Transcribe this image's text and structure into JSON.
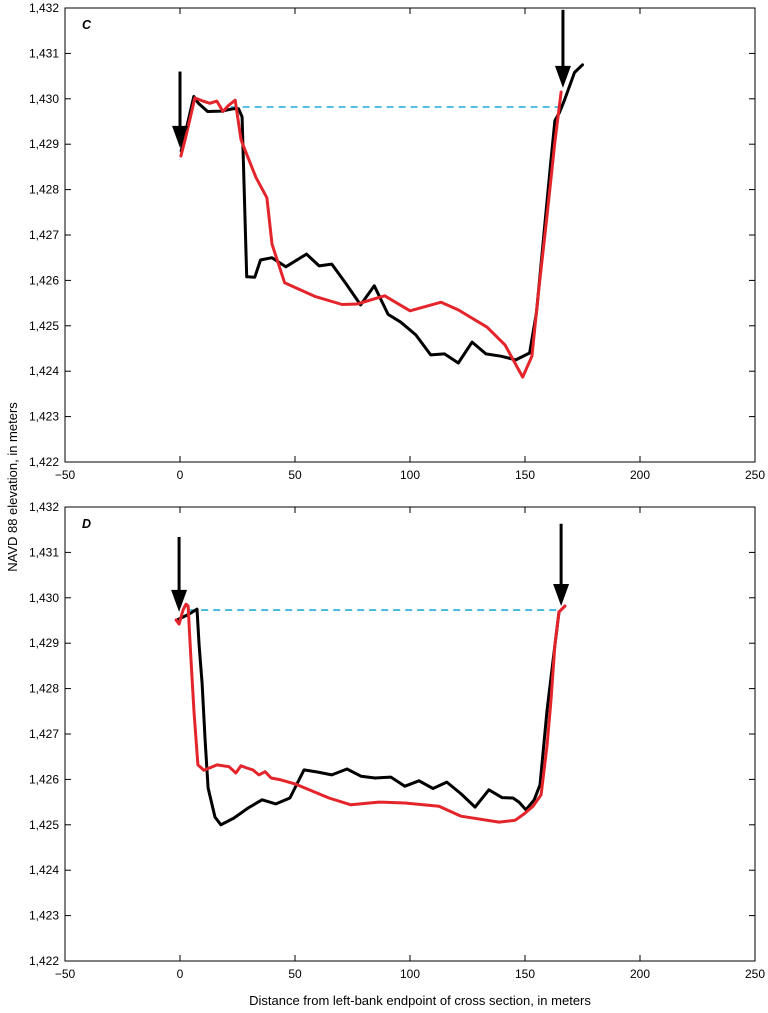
{
  "figure": {
    "ylabel": "NAVD 88 elevation, in meters",
    "xlabel": "Distance from left-bank endpoint of cross section, in meters"
  },
  "chart_data": [
    {
      "type": "line",
      "panel_label": "C",
      "xlim": [
        -50,
        250
      ],
      "ylim": [
        1422,
        1432
      ],
      "grid": false,
      "x_ticks": [
        -50,
        0,
        50,
        100,
        150,
        200,
        250
      ],
      "x_tick_labels": [
        "−50",
        "0",
        "50",
        "100",
        "150",
        "200",
        "250"
      ],
      "y_ticks": [
        1422,
        1423,
        1424,
        1425,
        1426,
        1427,
        1428,
        1429,
        1430,
        1431,
        1432
      ],
      "y_tick_labels": [
        "1,422",
        "1,423",
        "1,424",
        "1,425",
        "1,426",
        "1,427",
        "1,428",
        "1,429",
        "1,430",
        "1,431",
        "1,432"
      ],
      "series": [
        {
          "color": "#000000",
          "points": [
            [
              0.5,
              1428.85
            ],
            [
              6,
              1430.05
            ],
            [
              8,
              1429.9
            ],
            [
              12,
              1429.72
            ],
            [
              18,
              1429.73
            ],
            [
              23,
              1429.78
            ],
            [
              25.5,
              1429.78
            ],
            [
              27,
              1429.6
            ],
            [
              29,
              1426.08
            ],
            [
              32.5,
              1426.07
            ],
            [
              35,
              1426.45
            ],
            [
              40,
              1426.5
            ],
            [
              46,
              1426.3
            ],
            [
              55,
              1426.58
            ],
            [
              60.5,
              1426.32
            ],
            [
              66,
              1426.36
            ],
            [
              72,
              1425.94
            ],
            [
              78.5,
              1425.46
            ],
            [
              84.5,
              1425.88
            ],
            [
              90.5,
              1425.25
            ],
            [
              96,
              1425.08
            ],
            [
              102.5,
              1424.8
            ],
            [
              109,
              1424.36
            ],
            [
              115,
              1424.38
            ],
            [
              121,
              1424.18
            ],
            [
              127,
              1424.64
            ],
            [
              133,
              1424.38
            ],
            [
              139.5,
              1424.33
            ],
            [
              146,
              1424.25
            ],
            [
              152,
              1424.4
            ],
            [
              155,
              1425.3
            ],
            [
              158,
              1426.9
            ],
            [
              161,
              1428.5
            ],
            [
              163,
              1429.52
            ],
            [
              165,
              1429.7
            ],
            [
              167,
              1429.95
            ],
            [
              171.5,
              1430.58
            ],
            [
              175,
              1430.75
            ]
          ]
        },
        {
          "color": "#e3252b",
          "points": [
            [
              0.4,
              1428.74
            ],
            [
              2.2,
              1429.1
            ],
            [
              6.5,
              1430.02
            ],
            [
              10,
              1429.95
            ],
            [
              13,
              1429.9
            ],
            [
              16,
              1429.95
            ],
            [
              18.7,
              1429.72
            ],
            [
              21,
              1429.85
            ],
            [
              24,
              1429.97
            ],
            [
              26.5,
              1429.1
            ],
            [
              30,
              1428.65
            ],
            [
              33,
              1428.27
            ],
            [
              37.8,
              1427.82
            ],
            [
              40,
              1426.8
            ],
            [
              45.5,
              1425.95
            ],
            [
              58.5,
              1425.65
            ],
            [
              70.5,
              1425.47
            ],
            [
              77,
              1425.48
            ],
            [
              89,
              1425.66
            ],
            [
              100,
              1425.33
            ],
            [
              113.5,
              1425.52
            ],
            [
              121,
              1425.35
            ],
            [
              133.5,
              1424.97
            ],
            [
              141.3,
              1424.58
            ],
            [
              149,
              1423.87
            ],
            [
              153,
              1424.33
            ],
            [
              156,
              1425.8
            ],
            [
              159.5,
              1427.4
            ],
            [
              163,
              1429.05
            ],
            [
              165.7,
              1430.15
            ]
          ]
        }
      ],
      "water_surface": {
        "color": "#3fb7e3",
        "style": "dashed",
        "x": [
          22,
          164.5
        ],
        "y": 1429.82
      },
      "arrows": [
        {
          "side": "left",
          "x": 0,
          "y_top": 1430.6,
          "y_tip": 1428.92
        },
        {
          "side": "right",
          "x": 166.5,
          "y_top": 1431.96,
          "y_tip": 1430.24
        }
      ]
    },
    {
      "type": "line",
      "panel_label": "D",
      "xlim": [
        -50,
        250
      ],
      "ylim": [
        1422,
        1432
      ],
      "grid": false,
      "x_ticks": [
        -50,
        0,
        50,
        100,
        150,
        200,
        250
      ],
      "x_tick_labels": [
        "−50",
        "0",
        "50",
        "100",
        "150",
        "200",
        "250"
      ],
      "y_ticks": [
        1422,
        1423,
        1424,
        1425,
        1426,
        1427,
        1428,
        1429,
        1430,
        1431,
        1432
      ],
      "y_tick_labels": [
        "1,422",
        "1,423",
        "1,424",
        "1,425",
        "1,426",
        "1,427",
        "1,428",
        "1,429",
        "1,430",
        "1,431",
        "1,432"
      ],
      "series": [
        {
          "color": "#000000",
          "points": [
            [
              -1.3,
              1429.51
            ],
            [
              3.9,
              1429.64
            ],
            [
              7.4,
              1429.75
            ],
            [
              8.3,
              1428.96
            ],
            [
              9.6,
              1428.12
            ],
            [
              10.9,
              1426.87
            ],
            [
              12.2,
              1425.81
            ],
            [
              15.2,
              1425.17
            ],
            [
              17.8,
              1425.0
            ],
            [
              23.5,
              1425.15
            ],
            [
              29.6,
              1425.37
            ],
            [
              35.7,
              1425.55
            ],
            [
              41.7,
              1425.46
            ],
            [
              47.8,
              1425.59
            ],
            [
              53.9,
              1426.21
            ],
            [
              60,
              1426.16
            ],
            [
              66,
              1426.1
            ],
            [
              72.6,
              1426.23
            ],
            [
              78.7,
              1426.07
            ],
            [
              84.8,
              1426.03
            ],
            [
              91.7,
              1426.05
            ],
            [
              97.8,
              1425.85
            ],
            [
              103.9,
              1425.97
            ],
            [
              110,
              1425.8
            ],
            [
              116,
              1425.94
            ],
            [
              122.2,
              1425.68
            ],
            [
              128.3,
              1425.39
            ],
            [
              134.3,
              1425.77
            ],
            [
              140,
              1425.6
            ],
            [
              144.8,
              1425.59
            ],
            [
              147.4,
              1425.5
            ],
            [
              150.4,
              1425.33
            ],
            [
              154,
              1425.55
            ],
            [
              156.5,
              1425.88
            ],
            [
              159.6,
              1427.53
            ],
            [
              162.2,
              1428.63
            ],
            [
              164.8,
              1429.69
            ]
          ]
        },
        {
          "color": "#e3252b",
          "points": [
            [
              -1.7,
              1429.51
            ],
            [
              -0.4,
              1429.42
            ],
            [
              1.3,
              1429.73
            ],
            [
              2.6,
              1429.86
            ],
            [
              3.5,
              1429.82
            ],
            [
              4.8,
              1428.63
            ],
            [
              6.1,
              1427.49
            ],
            [
              7.8,
              1426.32
            ],
            [
              10.4,
              1426.2
            ],
            [
              16.1,
              1426.32
            ],
            [
              21.3,
              1426.28
            ],
            [
              24.3,
              1426.14
            ],
            [
              26.5,
              1426.3
            ],
            [
              29.1,
              1426.25
            ],
            [
              31.7,
              1426.21
            ],
            [
              34.3,
              1426.1
            ],
            [
              37,
              1426.17
            ],
            [
              39.6,
              1426.03
            ],
            [
              43.9,
              1425.99
            ],
            [
              50,
              1425.9
            ],
            [
              64.8,
              1425.59
            ],
            [
              74.3,
              1425.44
            ],
            [
              86.5,
              1425.5
            ],
            [
              97.8,
              1425.48
            ],
            [
              112.6,
              1425.41
            ],
            [
              122.2,
              1425.19
            ],
            [
              138.7,
              1425.06
            ],
            [
              145.7,
              1425.1
            ],
            [
              149.6,
              1425.24
            ],
            [
              153.5,
              1425.41
            ],
            [
              157,
              1425.66
            ],
            [
              159.6,
              1426.76
            ],
            [
              161.3,
              1427.75
            ],
            [
              163,
              1428.96
            ],
            [
              164.8,
              1429.69
            ],
            [
              167.4,
              1429.82
            ]
          ]
        }
      ],
      "water_surface": {
        "color": "#3fb7e3",
        "style": "dashed",
        "x": [
          4,
          165
        ],
        "y": 1429.73
      },
      "arrows": [
        {
          "side": "left",
          "x": -0.4,
          "y_top": 1431.34,
          "y_tip": 1429.69
        },
        {
          "side": "right",
          "x": 165.7,
          "y_top": 1431.63,
          "y_tip": 1429.82
        }
      ]
    }
  ]
}
